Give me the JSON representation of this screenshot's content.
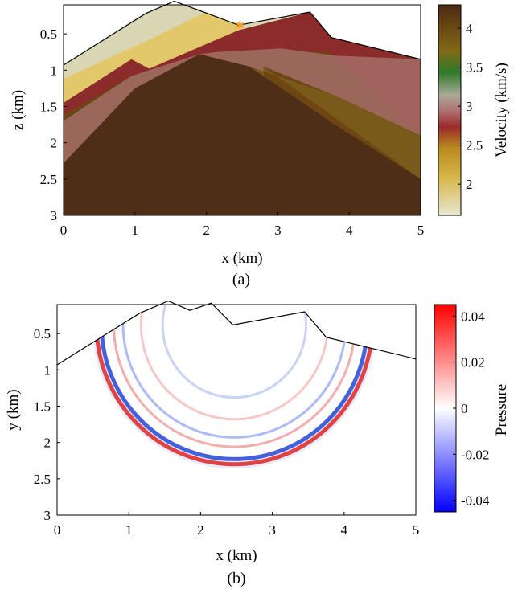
{
  "chart_data": [
    {
      "type": "heatmap",
      "panel_caption": "(a)",
      "xlabel": "x (km)",
      "ylabel": "z (km)",
      "xlim": [
        0,
        5
      ],
      "ylim": [
        3,
        0.1
      ],
      "x_ticks": [
        "0",
        "1",
        "2",
        "3",
        "4",
        "5"
      ],
      "y_ticks": [
        "0.5",
        "1",
        "1.5",
        "2",
        "2.5",
        "3"
      ],
      "y_tick_values": [
        0.5,
        1,
        1.5,
        2,
        2.5,
        3
      ],
      "x_tick_values": [
        0,
        1,
        2,
        3,
        4,
        5
      ],
      "colorbar": {
        "label": "Velocity (km/s)",
        "range": [
          1.6,
          4.3
        ],
        "ticks": [
          "2",
          "2.5",
          "3",
          "3.5",
          "4"
        ],
        "tick_values": [
          2,
          2.5,
          3,
          3.5,
          4
        ]
      },
      "surface_topography": [
        [
          0,
          0.93
        ],
        [
          1.15,
          0.22
        ],
        [
          1.55,
          0.05
        ],
        [
          2.1,
          0.25
        ],
        [
          2.45,
          0.38
        ],
        [
          3.45,
          0.2
        ],
        [
          3.75,
          0.55
        ],
        [
          5,
          0.85
        ]
      ],
      "source": {
        "x": 2.47,
        "z": 0.38,
        "color": "#f59b20"
      },
      "layers": [
        {
          "color": "#d9d6b4",
          "boundary": [
            [
              0,
              0.93
            ],
            [
              1.15,
              0.22
            ],
            [
              1.55,
              0.05
            ],
            [
              2.1,
              0.25
            ],
            [
              2.45,
              0.38
            ],
            [
              3.45,
              0.2
            ],
            [
              3.75,
              0.55
            ],
            [
              5,
              0.85
            ]
          ]
        },
        {
          "color": "#e2c86a",
          "boundary": [
            [
              0,
              1.12
            ],
            [
              1.2,
              0.58
            ],
            [
              2.2,
              0.1
            ],
            [
              2.45,
              0.38
            ]
          ]
        },
        {
          "color": "#8b2b2b",
          "boundary": [
            [
              0,
              1.45
            ],
            [
              0.95,
              0.85
            ],
            [
              1.2,
              0.98
            ],
            [
              2.45,
              0.45
            ],
            [
              3.45,
              0.2
            ],
            [
              3.75,
              0.55
            ],
            [
              5,
              0.85
            ]
          ]
        },
        {
          "color": "#6e4614",
          "boundary": [
            [
              0,
              1.62
            ],
            [
              0.95,
              1.08
            ],
            [
              2.15,
              0.75
            ],
            [
              3.7,
              0.75
            ],
            [
              5,
              1.9
            ]
          ]
        },
        {
          "color": "#a36d66",
          "boundary": [
            [
              0,
              1.7
            ],
            [
              0.95,
              1.08
            ],
            [
              1.9,
              0.78
            ],
            [
              2.15,
              0.75
            ],
            [
              3.05,
              0.7
            ],
            [
              3.8,
              0.8
            ],
            [
              5,
              0.85
            ],
            [
              5,
              1.9
            ],
            [
              3.8,
              1.35
            ],
            [
              2.8,
              0.95
            ]
          ]
        },
        {
          "color": "#7a5a1a",
          "boundary": [
            [
              1.9,
              0.78
            ],
            [
              2.6,
              0.95
            ],
            [
              3.8,
              1.35
            ],
            [
              5,
              1.9
            ],
            [
              5,
              2.5
            ],
            [
              2.8,
              0.95
            ]
          ]
        },
        {
          "color": "#4f2e18",
          "boundary": [
            [
              0,
              2.28
            ],
            [
              1.0,
              1.25
            ],
            [
              1.9,
              0.78
            ],
            [
              2.6,
              0.95
            ],
            [
              3.8,
              1.75
            ],
            [
              5,
              2.5
            ],
            [
              5,
              3
            ],
            [
              0,
              3
            ]
          ]
        }
      ]
    },
    {
      "type": "heatmap",
      "panel_caption": "(b)",
      "xlabel": "x (km)",
      "ylabel": "y (km)",
      "xlim": [
        0,
        5
      ],
      "ylim": [
        3,
        0.1
      ],
      "x_ticks": [
        "0",
        "1",
        "2",
        "3",
        "4",
        "5"
      ],
      "y_ticks": [
        "0.5",
        "1",
        "1.5",
        "2",
        "2.5",
        "3"
      ],
      "y_tick_values": [
        0.5,
        1,
        1.5,
        2,
        2.5,
        3
      ],
      "x_tick_values": [
        0,
        1,
        2,
        3,
        4,
        5
      ],
      "colorbar": {
        "label": "Pressure",
        "range": [
          -0.045,
          0.045
        ],
        "ticks": [
          "0.04",
          "0.02",
          "0",
          "-0.02",
          "-0.04"
        ],
        "tick_values": [
          0.04,
          0.02,
          0,
          -0.02,
          -0.04
        ]
      },
      "surface_topography": [
        [
          0,
          0.93
        ],
        [
          1.15,
          0.22
        ],
        [
          1.55,
          0.05
        ],
        [
          1.85,
          0.18
        ],
        [
          2.15,
          0.08
        ],
        [
          2.45,
          0.38
        ],
        [
          3.45,
          0.2
        ],
        [
          3.75,
          0.55
        ],
        [
          5,
          0.85
        ]
      ],
      "wavefronts": [
        {
          "radius": 1.92,
          "sign": "positive",
          "color": "#e03030"
        },
        {
          "radius": 1.85,
          "sign": "negative",
          "color": "#3050d8"
        },
        {
          "radius": 1.68,
          "sign": "positive",
          "color": "#f08a8a"
        },
        {
          "radius": 1.55,
          "sign": "negative",
          "color": "#8a9cf0"
        },
        {
          "radius": 1.3,
          "sign": "positive",
          "color": "#f4b0b0"
        },
        {
          "radius": 1.0,
          "sign": "negative",
          "color": "#b4c0f4"
        }
      ]
    }
  ]
}
